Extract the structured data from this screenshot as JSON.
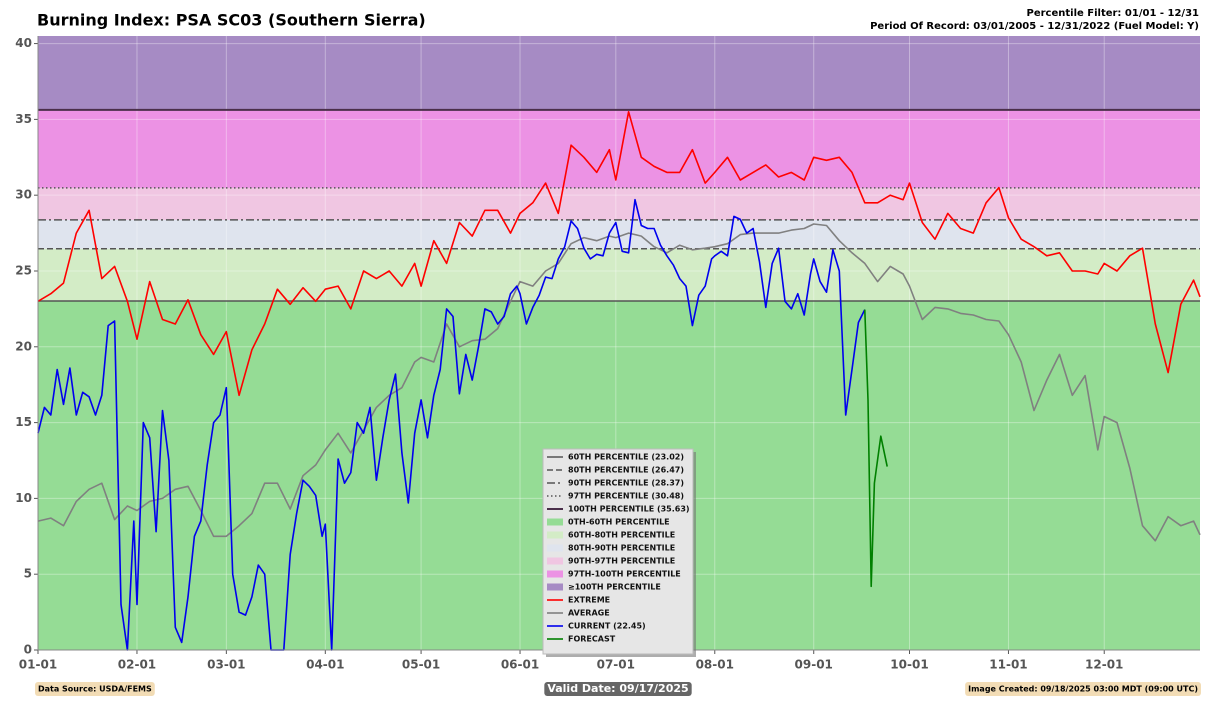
{
  "chart_data": {
    "type": "line",
    "title": "Burning Index: PSA SC03 (Southern Sierra)",
    "subtitle": [
      "Percentile Filter: 01/01 - 12/31",
      "Period Of Record: 03/01/2005 - 12/31/2022 (Fuel Model: Y)"
    ],
    "xlim": [
      "01-01",
      "12-31"
    ],
    "xticks": [
      "01-01",
      "02-01",
      "03-01",
      "04-01",
      "05-01",
      "06-01",
      "07-01",
      "08-01",
      "09-01",
      "10-01",
      "11-01",
      "12-01"
    ],
    "ylim": [
      0,
      40.5
    ],
    "yticks": [
      0,
      5,
      10,
      15,
      20,
      25,
      30,
      35,
      40
    ],
    "grid": true,
    "percentiles": [
      {
        "name": "60TH PERCENTILE (23.02)",
        "value": 23.02,
        "color": "#555555",
        "dash": "solid"
      },
      {
        "name": "80TH PERCENTILE (26.47)",
        "value": 26.47,
        "color": "#555555",
        "dash": "dashed"
      },
      {
        "name": "90TH PERCENTILE (28.37)",
        "value": 28.37,
        "color": "#555555",
        "dash": "dashdot"
      },
      {
        "name": "97TH PERCENTILE (30.48)",
        "value": 30.48,
        "color": "#555555",
        "dash": "dotted"
      },
      {
        "name": "100TH PERCENTILE (35.63)",
        "value": 35.63,
        "color": "#4a2f4a",
        "dash": "solid",
        "width": 2
      }
    ],
    "bands": [
      {
        "name": "0TH-60TH PERCENTILE",
        "color": "#95dc95"
      },
      {
        "name": "60TH-80TH PERCENTILE",
        "color": "#d3ecc6"
      },
      {
        "name": "80TH-90TH PERCENTILE",
        "color": "#dfe4ee"
      },
      {
        "name": "90TH-97TH PERCENTILE",
        "color": "#f0c6e2"
      },
      {
        "name": "97TH-100TH PERCENTILE",
        "color": "#ec92e4"
      },
      {
        "name": "≥100TH PERCENTILE",
        "color": "#a68bc4"
      }
    ],
    "series": [
      {
        "name": "EXTREME",
        "color": "#ff0000",
        "x": [
          "01-01",
          "01-05",
          "01-09",
          "01-13",
          "01-17",
          "01-21",
          "01-25",
          "01-29",
          "02-01",
          "02-05",
          "02-09",
          "02-13",
          "02-17",
          "02-21",
          "02-25",
          "03-01",
          "03-05",
          "03-09",
          "03-13",
          "03-17",
          "03-21",
          "03-25",
          "03-29",
          "04-01",
          "04-05",
          "04-09",
          "04-13",
          "04-17",
          "04-21",
          "04-25",
          "04-29",
          "05-01",
          "05-05",
          "05-09",
          "05-13",
          "05-17",
          "05-21",
          "05-25",
          "05-29",
          "06-01",
          "06-05",
          "06-09",
          "06-13",
          "06-17",
          "06-21",
          "06-25",
          "06-29",
          "07-01",
          "07-05",
          "07-09",
          "07-13",
          "07-17",
          "07-21",
          "07-25",
          "07-29",
          "08-01",
          "08-05",
          "08-09",
          "08-13",
          "08-17",
          "08-21",
          "08-25",
          "08-29",
          "09-01",
          "09-05",
          "09-09",
          "09-13",
          "09-17",
          "09-21",
          "09-25",
          "09-29",
          "10-01",
          "10-05",
          "10-09",
          "10-13",
          "10-17",
          "10-21",
          "10-25",
          "10-29",
          "11-01",
          "11-05",
          "11-09",
          "11-13",
          "11-17",
          "11-21",
          "11-25",
          "11-29",
          "12-01",
          "12-05",
          "12-09",
          "12-13",
          "12-17",
          "12-21",
          "12-25",
          "12-29",
          "12-31"
        ],
        "values": [
          23,
          23.5,
          24.2,
          27.5,
          29,
          24.5,
          25.3,
          23,
          20.5,
          24.3,
          21.8,
          21.5,
          23.1,
          20.8,
          19.5,
          21,
          16.8,
          19.8,
          21.5,
          23.8,
          22.8,
          23.9,
          23,
          23.8,
          24,
          22.5,
          25,
          24.5,
          25,
          24,
          25.5,
          24,
          27,
          25.5,
          28.2,
          27.3,
          29,
          29,
          27.5,
          28.8,
          29.5,
          30.8,
          28.8,
          33.3,
          32.5,
          31.5,
          33,
          31,
          35.5,
          32.5,
          31.9,
          31.5,
          31.5,
          33,
          30.8,
          31.5,
          32.5,
          31,
          31.5,
          32,
          31.2,
          31.5,
          31,
          32.5,
          32.3,
          32.5,
          31.5,
          29.5,
          29.5,
          30,
          29.7,
          30.8,
          28.2,
          27.1,
          28.8,
          27.8,
          27.5,
          29.5,
          30.5,
          28.5,
          27.1,
          26.6,
          26,
          26.2,
          25,
          25,
          24.8,
          25.5,
          25,
          26,
          26.5,
          21.5,
          18.3,
          22.8,
          24.4,
          23.3
        ]
      },
      {
        "name": "AVERAGE",
        "color": "#808080",
        "x": [
          "01-01",
          "01-05",
          "01-09",
          "01-13",
          "01-17",
          "01-21",
          "01-25",
          "01-29",
          "02-01",
          "02-05",
          "02-09",
          "02-13",
          "02-17",
          "02-21",
          "02-25",
          "03-01",
          "03-05",
          "03-09",
          "03-13",
          "03-17",
          "03-21",
          "03-25",
          "03-29",
          "04-01",
          "04-05",
          "04-09",
          "04-13",
          "04-17",
          "04-21",
          "04-25",
          "04-29",
          "05-01",
          "05-05",
          "05-09",
          "05-13",
          "05-17",
          "05-21",
          "05-25",
          "05-29",
          "06-01",
          "06-05",
          "06-09",
          "06-13",
          "06-17",
          "06-21",
          "06-25",
          "06-29",
          "07-01",
          "07-05",
          "07-09",
          "07-13",
          "07-17",
          "07-21",
          "07-25",
          "07-29",
          "08-01",
          "08-05",
          "08-09",
          "08-13",
          "08-17",
          "08-21",
          "08-25",
          "08-29",
          "09-01",
          "09-05",
          "09-09",
          "09-13",
          "09-17",
          "09-21",
          "09-25",
          "09-29",
          "10-01",
          "10-05",
          "10-09",
          "10-13",
          "10-17",
          "10-21",
          "10-25",
          "10-29",
          "11-01",
          "11-05",
          "11-09",
          "11-13",
          "11-17",
          "11-21",
          "11-25",
          "11-29",
          "12-01",
          "12-05",
          "12-09",
          "12-13",
          "12-17",
          "12-21",
          "12-25",
          "12-29",
          "12-31"
        ],
        "values": [
          8.5,
          8.7,
          8.2,
          9.8,
          10.6,
          11,
          8.6,
          9.5,
          9.2,
          9.8,
          10,
          10.6,
          10.8,
          9.2,
          7.5,
          7.5,
          8.2,
          9,
          11,
          11,
          9.3,
          11.5,
          12.2,
          13.2,
          14.3,
          13,
          14.5,
          16,
          16.8,
          17.3,
          19,
          19.3,
          19,
          21.5,
          20,
          20.4,
          20.5,
          21.2,
          23,
          24.3,
          24,
          25,
          25.5,
          26.8,
          27.2,
          27,
          27.3,
          27.2,
          27.5,
          27.3,
          26.6,
          26.2,
          26.7,
          26.4,
          26.5,
          26.6,
          26.8,
          27.4,
          27.5,
          27.5,
          27.5,
          27.7,
          27.8,
          28.1,
          28,
          27,
          26.2,
          25.5,
          24.3,
          25.3,
          24.8,
          24,
          21.8,
          22.6,
          22.5,
          22.2,
          22.1,
          21.8,
          21.7,
          20.8,
          19,
          15.8,
          17.8,
          19.5,
          16.8,
          18.1,
          13.2,
          15.4,
          15,
          12,
          8.2,
          7.2,
          8.8,
          8.2,
          8.5,
          7.6
        ]
      },
      {
        "name": "CURRENT (22.45)",
        "color": "#0000ee",
        "x": [
          "01-01",
          "01-03",
          "01-05",
          "01-07",
          "01-09",
          "01-11",
          "01-13",
          "01-15",
          "01-17",
          "01-19",
          "01-21",
          "01-23",
          "01-25",
          "01-27",
          "01-29",
          "01-31",
          "02-01",
          "02-03",
          "02-05",
          "02-07",
          "02-09",
          "02-11",
          "02-13",
          "02-15",
          "02-17",
          "02-19",
          "02-21",
          "02-23",
          "02-25",
          "02-27",
          "03-01",
          "03-03",
          "03-05",
          "03-07",
          "03-09",
          "03-11",
          "03-13",
          "03-15",
          "03-17",
          "03-19",
          "03-21",
          "03-23",
          "03-25",
          "03-27",
          "03-29",
          "03-31",
          "04-01",
          "04-03",
          "04-05",
          "04-07",
          "04-09",
          "04-11",
          "04-13",
          "04-15",
          "04-17",
          "04-19",
          "04-21",
          "04-23",
          "04-25",
          "04-27",
          "04-29",
          "05-01",
          "05-03",
          "05-05",
          "05-07",
          "05-09",
          "05-11",
          "05-13",
          "05-15",
          "05-17",
          "05-19",
          "05-21",
          "05-23",
          "05-25",
          "05-27",
          "05-29",
          "05-31",
          "06-01",
          "06-03",
          "06-05",
          "06-07",
          "06-09",
          "06-11",
          "06-13",
          "06-15",
          "06-17",
          "06-19",
          "06-21",
          "06-23",
          "06-25",
          "06-27",
          "06-29",
          "07-01",
          "07-03",
          "07-05",
          "07-07",
          "07-09",
          "07-11",
          "07-13",
          "07-15",
          "07-17",
          "07-19",
          "07-21",
          "07-23",
          "07-25",
          "07-27",
          "07-29",
          "07-31",
          "08-01",
          "08-03",
          "08-05",
          "08-07",
          "08-09",
          "08-11",
          "08-13",
          "08-15",
          "08-17",
          "08-19",
          "08-21",
          "08-23",
          "08-25",
          "08-27",
          "08-29",
          "08-31",
          "09-01",
          "09-03",
          "09-05",
          "09-07",
          "09-09",
          "09-11",
          "09-13",
          "09-15",
          "09-17"
        ],
        "values": [
          14.3,
          16,
          15.5,
          18.5,
          16.2,
          18.6,
          15.5,
          17,
          16.7,
          15.5,
          16.8,
          21.4,
          21.7,
          3,
          0,
          8.5,
          3,
          15,
          14,
          7.8,
          15.8,
          12.5,
          1.5,
          0.5,
          3.5,
          7.5,
          8.5,
          12.2,
          15,
          15.5,
          17.3,
          5,
          2.5,
          2.3,
          3.5,
          5.6,
          5,
          0,
          0,
          0,
          6.3,
          9,
          11.2,
          10.8,
          10.2,
          7.5,
          8.3,
          0,
          12.6,
          11,
          11.7,
          15,
          14.3,
          16,
          11.2,
          14,
          16.5,
          18.2,
          13,
          9.7,
          14.3,
          16.5,
          14,
          16.8,
          18.5,
          22.5,
          22,
          16.9,
          19.5,
          17.8,
          20,
          22.5,
          22.3,
          21.5,
          22,
          23.5,
          24,
          23.5,
          21.5,
          22.6,
          23.4,
          24.6,
          24.5,
          25.8,
          26.6,
          28.3,
          27.8,
          26.5,
          25.8,
          26.1,
          26,
          27.5,
          28.2,
          26.3,
          26.2,
          29.7,
          28,
          27.8,
          27.8,
          26.7,
          26,
          25.4,
          24.5,
          24,
          21.4,
          23.4,
          24,
          25.8,
          26,
          26.3,
          26,
          28.6,
          28.4,
          27.5,
          27.8,
          25.6,
          22.6,
          25.5,
          26.5,
          23,
          22.5,
          23.5,
          22.1,
          24.8,
          25.8,
          24.3,
          23.6,
          26.4,
          25,
          15.5,
          18.5,
          21.6,
          22.45
        ]
      },
      {
        "name": "FORECAST",
        "color": "#008000",
        "x": [
          "09-17",
          "09-18",
          "09-19",
          "09-20",
          "09-22",
          "09-24"
        ],
        "values": [
          22.45,
          16.5,
          4.2,
          11,
          14.1,
          12.1
        ]
      }
    ],
    "footer": {
      "source": "Data Source: USDA/FEMS",
      "valid": "Valid Date: 09/17/2025",
      "created": "Image Created: 09/18/2025 03:00 MDT (09:00 UTC)"
    }
  }
}
